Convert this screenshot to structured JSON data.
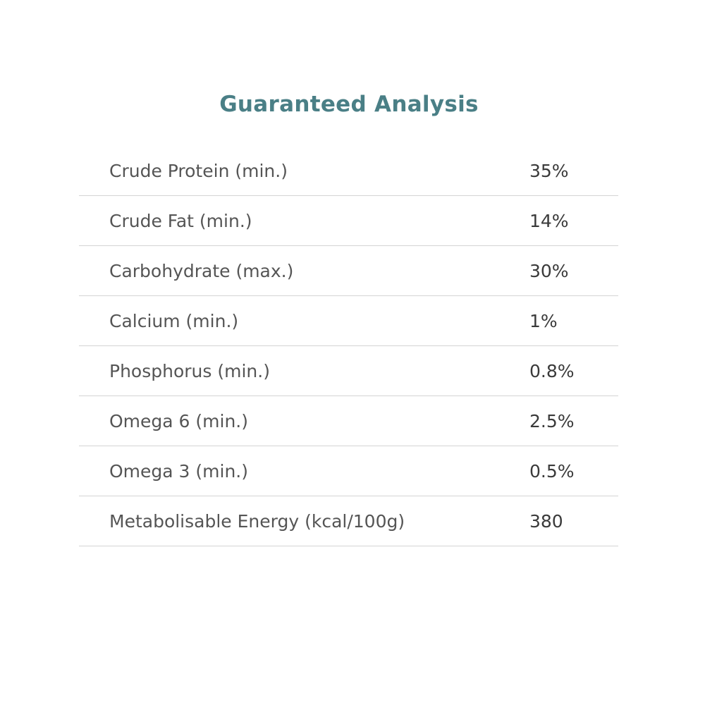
{
  "header": {
    "title": "Guaranteed Analysis"
  },
  "table": {
    "rows": [
      [
        "Crude Protein (min.)",
        "35%"
      ],
      [
        "Crude Fat (min.)",
        "14%"
      ],
      [
        "Carbohydrate (max.)",
        "30%"
      ],
      [
        "Calcium (min.)",
        "1%"
      ],
      [
        "Phosphorus (min.)",
        "0.8%"
      ],
      [
        "Omega 6 (min.)",
        "2.5%"
      ],
      [
        "Omega 3 (min.)",
        "0.5%"
      ],
      [
        "Metabolisable Energy (kcal/100g)",
        "380"
      ]
    ]
  }
}
